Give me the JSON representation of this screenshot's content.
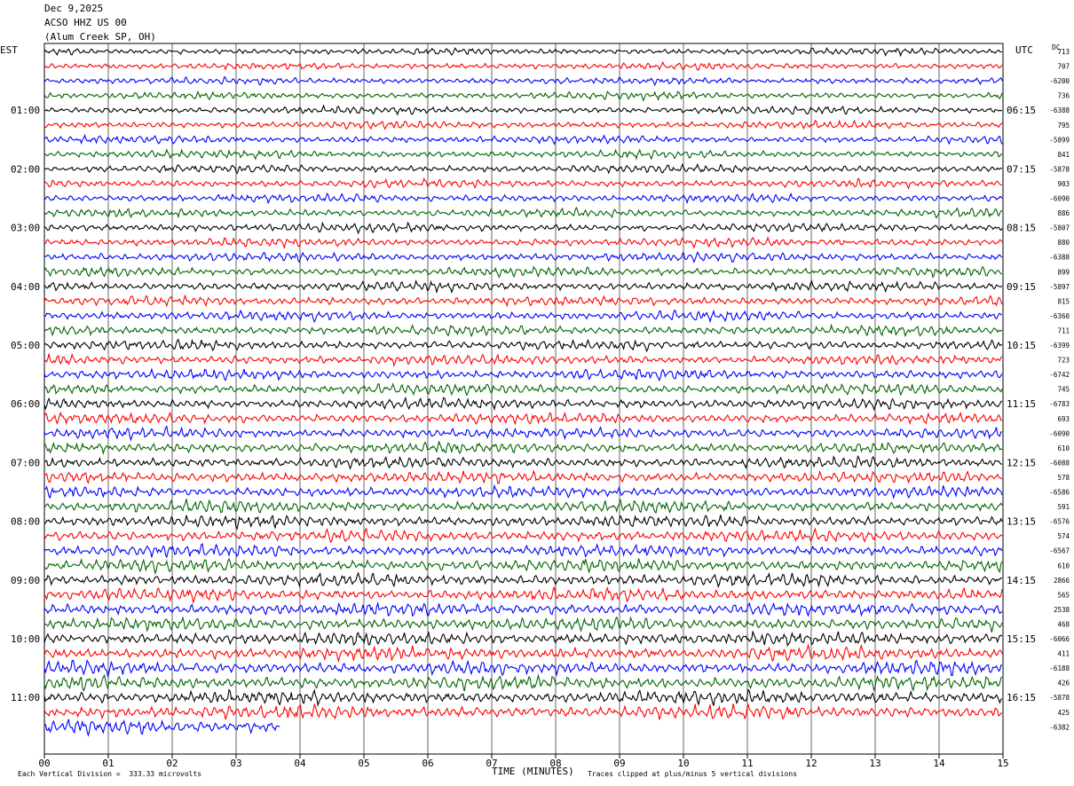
{
  "header": {
    "date": "Dec 9,2025",
    "station": "ACSO HHZ US 00",
    "location": "(Alum Creek SP, OH)"
  },
  "left_tz": "EST",
  "right_tz": "UTC",
  "dc_label": "DC",
  "footer": {
    "scale_note": "Each Vertical Division =  333.33 microvolts",
    "clip_note": "Traces clipped at plus/minus 5 vertical divisions"
  },
  "chart_data": {
    "type": "line",
    "title": "",
    "xlabel": "TIME (MINUTES)",
    "xlim": [
      0,
      15
    ],
    "x_ticks": [
      "00",
      "01",
      "02",
      "03",
      "04",
      "05",
      "06",
      "07",
      "08",
      "09",
      "10",
      "11",
      "12",
      "13",
      "14",
      "15"
    ],
    "trace_colors": [
      "#000000",
      "#ff0000",
      "#0000ff",
      "#006400"
    ],
    "rows_per_hour": 4,
    "rows_total": 47,
    "last_row_end_minute": 3.7,
    "left_hour_labels": [
      "01:00",
      "02:00",
      "03:00",
      "04:00",
      "05:00",
      "06:00",
      "07:00",
      "08:00",
      "09:00",
      "10:00",
      "11:00"
    ],
    "right_hour_labels": [
      "06:15",
      "07:15",
      "08:15",
      "09:15",
      "10:15",
      "11:15",
      "12:15",
      "13:15",
      "14:15",
      "15:15",
      "16:15"
    ],
    "dc_offsets": [
      "713",
      "707",
      "-6200",
      "736",
      "-6388",
      "795",
      "-5899",
      "841",
      "-5878",
      "903",
      "-6090",
      "886",
      "-5807",
      "880",
      "-6388",
      "899",
      "-5897",
      "815",
      "-6360",
      "711",
      "-6399",
      "723",
      "-6742",
      "745",
      "-6783",
      "693",
      "-6090",
      "610",
      "-6088",
      "578",
      "-6586",
      "591",
      "-6576",
      "574",
      "-6567",
      "610",
      "2866",
      "565",
      "2538",
      "468",
      "-6066",
      "411",
      "-6188",
      "426",
      "-5878",
      "425",
      "-6382"
    ]
  }
}
